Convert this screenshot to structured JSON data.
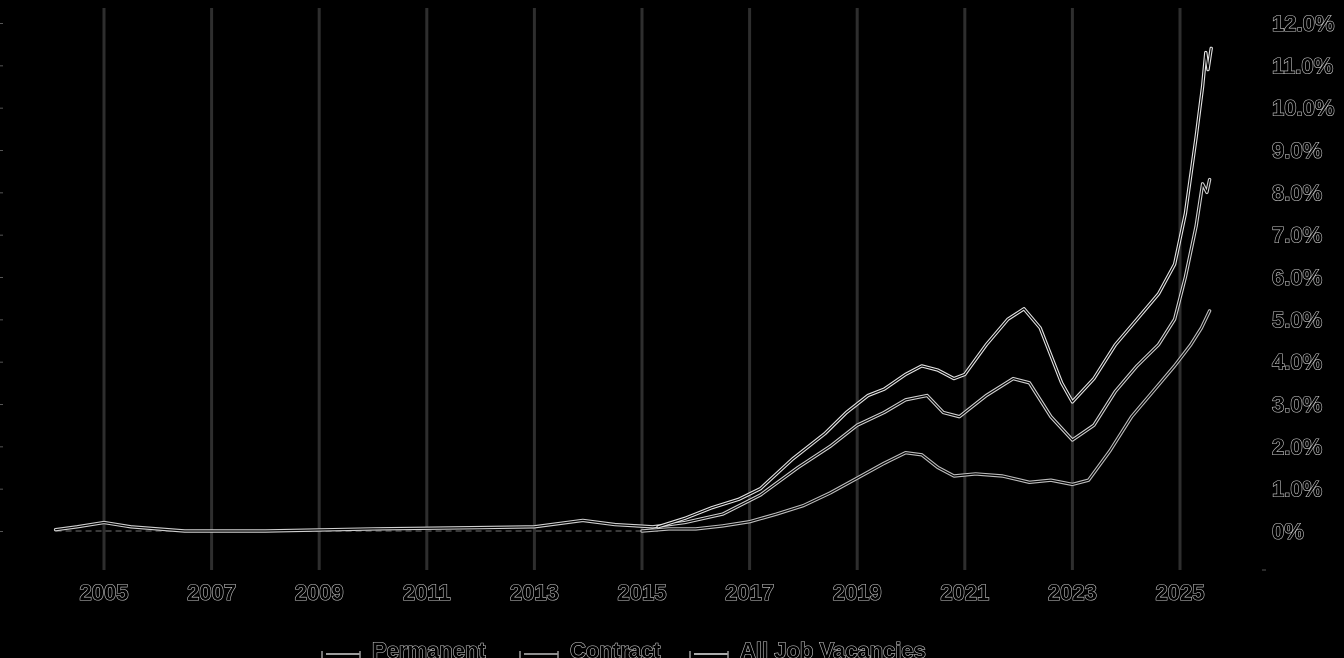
{
  "chart_data": {
    "type": "line",
    "title": "",
    "xlabel": "",
    "ylabel": "",
    "xlim": [
      2003.1,
      2025.8
    ],
    "ylim": [
      -0.9,
      12.2
    ],
    "grid": "vertical",
    "legend_position": "bottom",
    "y_ticks": [
      {
        "value": 0,
        "label": "0%"
      },
      {
        "value": 1,
        "label": "1.0%"
      },
      {
        "value": 2,
        "label": "2.0%"
      },
      {
        "value": 3,
        "label": "3.0%"
      },
      {
        "value": 4,
        "label": "4.0%"
      },
      {
        "value": 5,
        "label": "5.0%"
      },
      {
        "value": 6,
        "label": "6.0%"
      },
      {
        "value": 7,
        "label": "7.0%"
      },
      {
        "value": 8,
        "label": "8.0%"
      },
      {
        "value": 9,
        "label": "9.0%"
      },
      {
        "value": 10,
        "label": "10.0%"
      },
      {
        "value": 11,
        "label": "11.0%"
      },
      {
        "value": 12,
        "label": "12.0%"
      }
    ],
    "x_ticks": [
      {
        "value": 2005,
        "label": "2005"
      },
      {
        "value": 2007,
        "label": "2007"
      },
      {
        "value": 2009,
        "label": "2009"
      },
      {
        "value": 2011,
        "label": "2011"
      },
      {
        "value": 2013,
        "label": "2013"
      },
      {
        "value": 2015,
        "label": "2015"
      },
      {
        "value": 2017,
        "label": "2017"
      },
      {
        "value": 2019,
        "label": "2019"
      },
      {
        "value": 2021,
        "label": "2021"
      },
      {
        "value": 2023,
        "label": "2023"
      },
      {
        "value": 2025,
        "label": "2025"
      }
    ],
    "series": [
      {
        "name": "Permanent",
        "color": "#d0d0d0",
        "points": [
          [
            2004.1,
            0.03
          ],
          [
            2004.5,
            0.1
          ],
          [
            2005.0,
            0.2
          ],
          [
            2005.5,
            0.1
          ],
          [
            2006.5,
            0.0
          ],
          [
            2008,
            0.0
          ],
          [
            2010,
            0.05
          ],
          [
            2012,
            0.08
          ],
          [
            2013.0,
            0.1
          ],
          [
            2013.9,
            0.25
          ],
          [
            2014.5,
            0.15
          ],
          [
            2015.2,
            0.1
          ],
          [
            2015.8,
            0.2
          ],
          [
            2016.5,
            0.4
          ],
          [
            2017.2,
            0.85
          ],
          [
            2017.9,
            1.5
          ],
          [
            2018.5,
            2.0
          ],
          [
            2019.0,
            2.5
          ],
          [
            2019.5,
            2.8
          ],
          [
            2019.9,
            3.1
          ],
          [
            2020.3,
            3.2
          ],
          [
            2020.6,
            2.8
          ],
          [
            2020.9,
            2.7
          ],
          [
            2021.4,
            3.2
          ],
          [
            2021.9,
            3.6
          ],
          [
            2022.2,
            3.5
          ],
          [
            2022.6,
            2.7
          ],
          [
            2023.0,
            2.15
          ],
          [
            2023.4,
            2.5
          ],
          [
            2023.8,
            3.3
          ],
          [
            2024.2,
            3.9
          ],
          [
            2024.6,
            4.4
          ],
          [
            2024.9,
            5.0
          ],
          [
            2025.1,
            6.0
          ],
          [
            2025.3,
            7.2
          ],
          [
            2025.42,
            8.2
          ],
          [
            2025.5,
            8.0
          ],
          [
            2025.55,
            8.3
          ]
        ]
      },
      {
        "name": "Contract",
        "color": "#bdbdbd",
        "points": [
          [
            2015.0,
            0.0
          ],
          [
            2015.5,
            0.05
          ],
          [
            2016.0,
            0.05
          ],
          [
            2016.5,
            0.12
          ],
          [
            2017.0,
            0.22
          ],
          [
            2017.5,
            0.4
          ],
          [
            2018.0,
            0.6
          ],
          [
            2018.5,
            0.9
          ],
          [
            2019.0,
            1.25
          ],
          [
            2019.5,
            1.6
          ],
          [
            2019.9,
            1.85
          ],
          [
            2020.2,
            1.8
          ],
          [
            2020.5,
            1.5
          ],
          [
            2020.8,
            1.3
          ],
          [
            2021.2,
            1.35
          ],
          [
            2021.7,
            1.3
          ],
          [
            2022.2,
            1.15
          ],
          [
            2022.6,
            1.2
          ],
          [
            2023.0,
            1.1
          ],
          [
            2023.3,
            1.2
          ],
          [
            2023.7,
            1.9
          ],
          [
            2024.1,
            2.7
          ],
          [
            2024.5,
            3.3
          ],
          [
            2024.9,
            3.9
          ],
          [
            2025.2,
            4.4
          ],
          [
            2025.4,
            4.8
          ],
          [
            2025.55,
            5.2
          ]
        ]
      },
      {
        "name": "All Job Vacancies",
        "color": "#e4e4e4",
        "points": [
          [
            2015.3,
            0.1
          ],
          [
            2015.8,
            0.3
          ],
          [
            2016.3,
            0.55
          ],
          [
            2016.8,
            0.75
          ],
          [
            2017.2,
            1.0
          ],
          [
            2017.8,
            1.7
          ],
          [
            2018.4,
            2.3
          ],
          [
            2018.8,
            2.8
          ],
          [
            2019.2,
            3.2
          ],
          [
            2019.5,
            3.35
          ],
          [
            2019.9,
            3.7
          ],
          [
            2020.2,
            3.9
          ],
          [
            2020.5,
            3.8
          ],
          [
            2020.8,
            3.6
          ],
          [
            2021.0,
            3.7
          ],
          [
            2021.4,
            4.4
          ],
          [
            2021.8,
            5.0
          ],
          [
            2022.1,
            5.25
          ],
          [
            2022.4,
            4.8
          ],
          [
            2022.8,
            3.5
          ],
          [
            2023.0,
            3.05
          ],
          [
            2023.4,
            3.6
          ],
          [
            2023.8,
            4.4
          ],
          [
            2024.2,
            5.0
          ],
          [
            2024.6,
            5.6
          ],
          [
            2024.9,
            6.3
          ],
          [
            2025.1,
            7.5
          ],
          [
            2025.3,
            9.3
          ],
          [
            2025.42,
            10.5
          ],
          [
            2025.48,
            11.3
          ],
          [
            2025.52,
            10.9
          ],
          [
            2025.58,
            11.4
          ]
        ]
      }
    ]
  }
}
